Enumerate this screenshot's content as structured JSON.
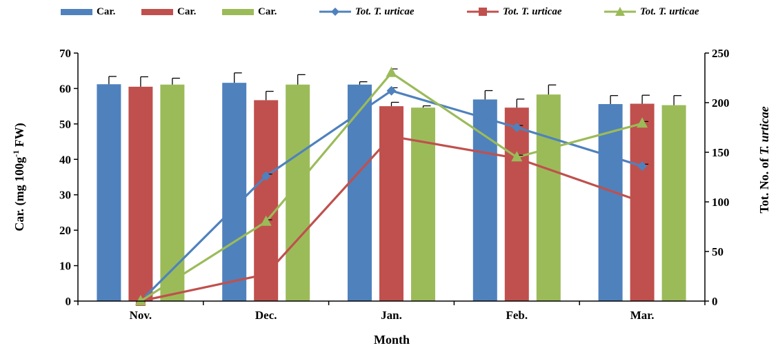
{
  "chart_data": {
    "type": "bar+line",
    "categories": [
      "Nov.",
      "Dec.",
      "Jan.",
      "Feb.",
      "Mar."
    ],
    "xlabel": "Month",
    "ylabel_main": "Car. (mg 100g",
    "ylabel_sup": "-1",
    "ylabel_tail": " FW)",
    "y2label_prefix": "Tot. No. of  ",
    "y2label_italic": "T. urticae",
    "ylim": [
      0,
      70
    ],
    "y_ticks": [
      0,
      10,
      20,
      30,
      40,
      50,
      60,
      70
    ],
    "y2lim": [
      0,
      250
    ],
    "y2_ticks": [
      0,
      50,
      100,
      150,
      200,
      250
    ],
    "grid": false,
    "legend_position": "top",
    "bar_series": [
      {
        "name": "Car.",
        "color": "#4F81BD",
        "values": [
          61.2,
          61.6,
          61.1,
          56.9,
          55.6
        ],
        "errors": [
          2.2,
          2.8,
          0.8,
          2.5,
          2.4
        ]
      },
      {
        "name": "Car.",
        "color": "#C0504D",
        "values": [
          60.5,
          56.7,
          55.0,
          54.6,
          55.7
        ],
        "errors": [
          2.8,
          2.5,
          1.1,
          2.4,
          2.4
        ]
      },
      {
        "name": "Car.",
        "color": "#9BBB59",
        "values": [
          61.1,
          61.1,
          54.6,
          58.3,
          55.3
        ],
        "errors": [
          1.8,
          2.8,
          0.5,
          2.7,
          2.7
        ]
      }
    ],
    "line_series": [
      {
        "name": "Tot. T. urticae",
        "color": "#4F81BD",
        "marker": "diamond",
        "values": [
          0,
          126,
          212,
          175,
          136
        ],
        "errors": [
          0,
          2,
          3,
          2,
          2
        ]
      },
      {
        "name": "Tot. T. urticae",
        "color": "#C0504D",
        "marker": "square",
        "values": [
          0,
          27,
          166,
          144,
          100
        ],
        "errors": [
          0,
          0,
          0,
          0,
          0
        ]
      },
      {
        "name": "Tot. T. urticae",
        "color": "#9BBB59",
        "marker": "triangle",
        "values": [
          0,
          80,
          230,
          145,
          179
        ],
        "errors": [
          0,
          2,
          4,
          2,
          2
        ]
      }
    ]
  }
}
